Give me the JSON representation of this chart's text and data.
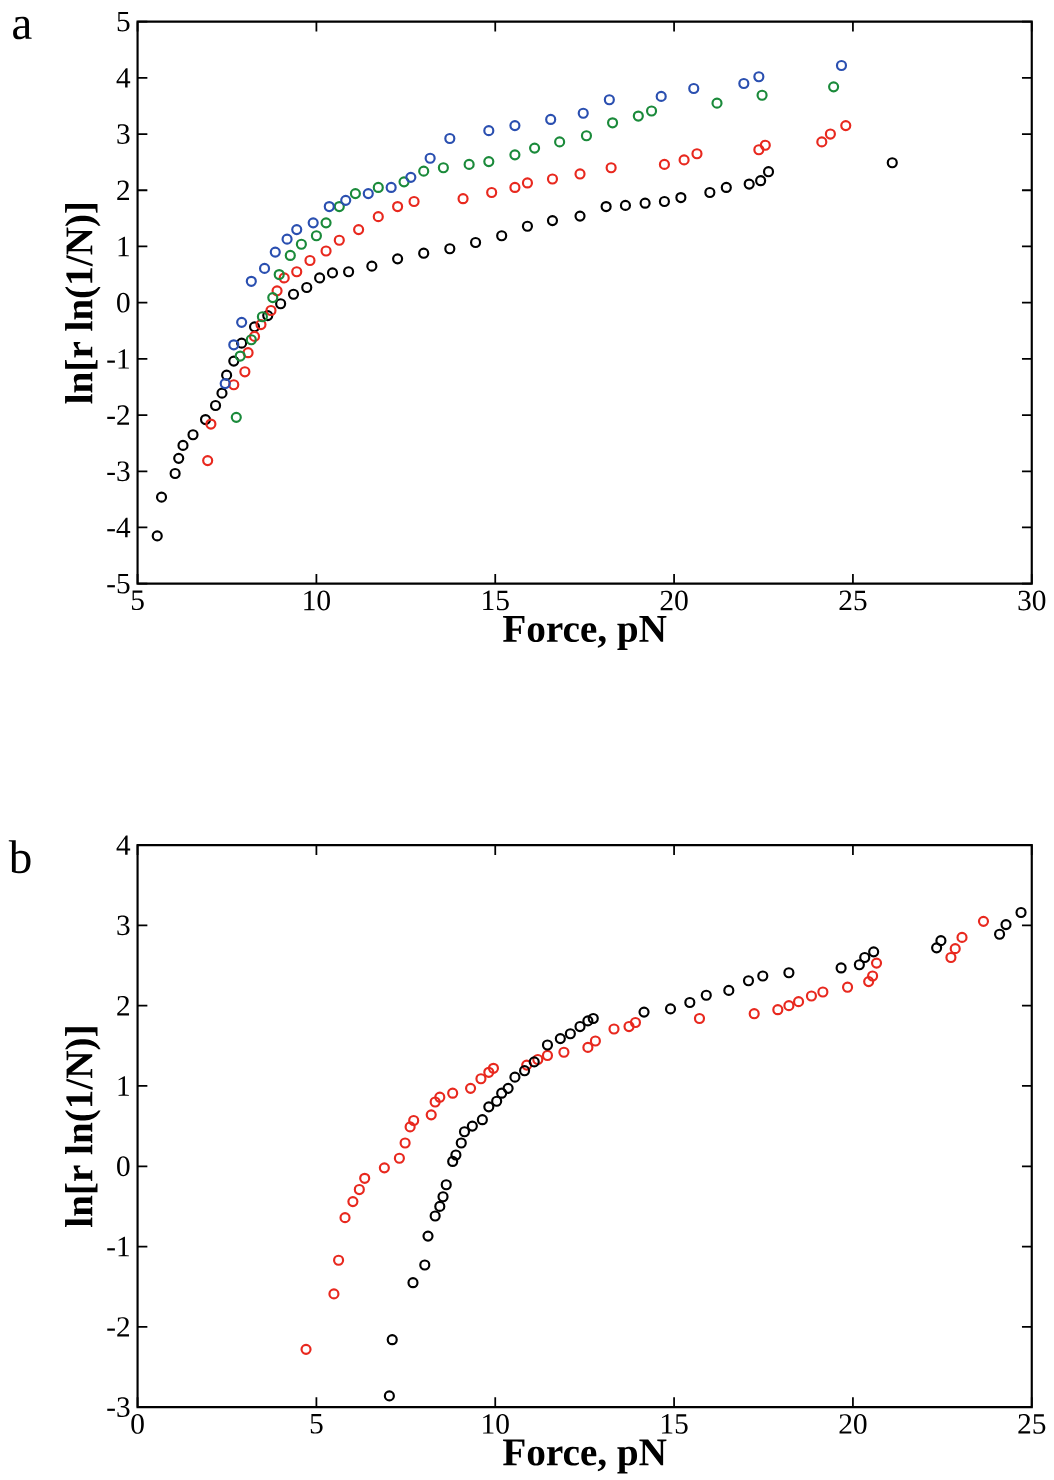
{
  "chart_data": [
    {
      "type": "scatter",
      "title": "a",
      "xlabel": "Force, pN",
      "ylabel": "ln[r ln(1/N)]",
      "xlim": [
        5,
        30
      ],
      "ylim": [
        -5,
        5
      ],
      "xticks": [
        5,
        10,
        15,
        20,
        25,
        30
      ],
      "yticks": [
        -5,
        -4,
        -3,
        -2,
        -1,
        0,
        1,
        2,
        3,
        4,
        5
      ],
      "grid": false,
      "marker": "circle",
      "series": [
        {
          "color": "#000000",
          "x": [
            5.55,
            5.67,
            6.05,
            6.15,
            6.27,
            6.55,
            6.9,
            7.18,
            7.36,
            7.49,
            7.69,
            7.91,
            8.27,
            8.64,
            9.0,
            9.36,
            9.73,
            10.09,
            10.45,
            10.9,
            11.55,
            12.27,
            13.0,
            13.73,
            14.45,
            15.18,
            15.9,
            16.6,
            17.37,
            18.1,
            18.64,
            19.19,
            19.73,
            20.19,
            21.0,
            21.46,
            22.1,
            22.42,
            22.64,
            26.1
          ],
          "values": [
            -4.15,
            -3.46,
            -3.04,
            -2.77,
            -2.54,
            -2.35,
            -2.08,
            -1.83,
            -1.61,
            -1.29,
            -1.04,
            -0.72,
            -0.43,
            -0.23,
            -0.02,
            0.15,
            0.27,
            0.44,
            0.53,
            0.55,
            0.65,
            0.78,
            0.88,
            0.96,
            1.07,
            1.19,
            1.36,
            1.46,
            1.54,
            1.71,
            1.73,
            1.77,
            1.8,
            1.87,
            1.96,
            2.05,
            2.11,
            2.17,
            2.33,
            2.49
          ]
        },
        {
          "color": "#e8281e",
          "x": [
            6.96,
            7.05,
            7.69,
            8.0,
            8.09,
            8.27,
            8.45,
            8.73,
            8.9,
            9.1,
            9.45,
            9.82,
            10.27,
            10.64,
            11.18,
            11.73,
            12.27,
            12.73,
            14.1,
            14.9,
            15.55,
            15.9,
            16.6,
            17.37,
            18.24,
            19.73,
            20.28,
            20.64,
            22.37,
            22.55,
            24.13,
            24.37,
            24.8
          ],
          "values": [
            -2.81,
            -2.16,
            -1.46,
            -1.23,
            -0.89,
            -0.6,
            -0.39,
            -0.14,
            0.21,
            0.44,
            0.55,
            0.75,
            0.92,
            1.11,
            1.3,
            1.53,
            1.71,
            1.8,
            1.85,
            1.96,
            2.05,
            2.13,
            2.2,
            2.29,
            2.4,
            2.46,
            2.54,
            2.65,
            2.72,
            2.8,
            2.86,
            3.0,
            3.15
          ]
        },
        {
          "color": "#1a8a3a",
          "x": [
            7.76,
            7.87,
            8.18,
            8.49,
            8.78,
            8.96,
            9.27,
            9.58,
            10.0,
            10.27,
            10.64,
            11.09,
            11.73,
            12.45,
            13.0,
            13.55,
            14.27,
            14.82,
            15.55,
            16.1,
            16.8,
            17.55,
            18.28,
            19.0,
            19.37,
            21.2,
            22.46,
            24.46
          ],
          "values": [
            -2.04,
            -0.95,
            -0.66,
            -0.25,
            0.09,
            0.5,
            0.84,
            1.04,
            1.19,
            1.42,
            1.71,
            1.94,
            2.05,
            2.15,
            2.34,
            2.4,
            2.46,
            2.51,
            2.63,
            2.75,
            2.86,
            2.97,
            3.2,
            3.32,
            3.41,
            3.55,
            3.69,
            3.84
          ]
        },
        {
          "color": "#2a4fb0",
          "x": [
            7.45,
            7.69,
            7.91,
            8.18,
            8.55,
            8.85,
            9.18,
            9.45,
            9.91,
            10.36,
            10.82,
            11.45,
            12.09,
            12.64,
            13.18,
            13.73,
            14.82,
            15.55,
            16.55,
            17.46,
            18.19,
            19.64,
            20.55,
            21.95,
            22.37,
            24.68
          ],
          "values": [
            -1.44,
            -0.75,
            -0.35,
            0.38,
            0.61,
            0.9,
            1.13,
            1.3,
            1.42,
            1.71,
            1.82,
            1.94,
            2.05,
            2.23,
            2.57,
            2.92,
            3.06,
            3.15,
            3.26,
            3.37,
            3.61,
            3.67,
            3.81,
            3.9,
            4.02,
            4.22
          ]
        }
      ]
    },
    {
      "type": "scatter",
      "title": "b",
      "xlabel": "Force, pN",
      "ylabel": "ln[r ln(1/N)]",
      "xlim": [
        0,
        25
      ],
      "ylim": [
        -3,
        4
      ],
      "xticks": [
        0,
        5,
        10,
        15,
        20,
        25
      ],
      "yticks": [
        -3,
        -2,
        -1,
        0,
        1,
        2,
        3,
        4
      ],
      "grid": false,
      "marker": "circle",
      "series": [
        {
          "color": "#e8281e",
          "x": [
            4.71,
            5.49,
            5.62,
            5.8,
            6.02,
            6.2,
            6.35,
            6.9,
            7.32,
            7.48,
            7.62,
            7.72,
            8.21,
            8.32,
            8.45,
            8.81,
            9.31,
            9.6,
            9.82,
            9.95,
            10.88,
            11.19,
            11.46,
            11.92,
            12.59,
            12.8,
            13.32,
            13.74,
            13.92,
            15.71,
            17.24,
            17.9,
            18.21,
            18.48,
            18.84,
            19.16,
            19.85,
            20.44,
            20.55,
            20.66,
            22.74,
            22.86,
            23.05,
            23.65
          ],
          "values": [
            -2.28,
            -1.59,
            -1.17,
            -0.64,
            -0.44,
            -0.29,
            -0.15,
            -0.02,
            0.1,
            0.29,
            0.49,
            0.57,
            0.64,
            0.8,
            0.86,
            0.91,
            0.97,
            1.09,
            1.17,
            1.22,
            1.26,
            1.33,
            1.38,
            1.42,
            1.48,
            1.56,
            1.71,
            1.74,
            1.79,
            1.84,
            1.9,
            1.95,
            2.0,
            2.05,
            2.12,
            2.17,
            2.23,
            2.3,
            2.37,
            2.53,
            2.6,
            2.71,
            2.85,
            3.05
          ]
        },
        {
          "color": "#000000",
          "x": [
            7.04,
            7.12,
            7.7,
            8.03,
            8.12,
            8.32,
            8.45,
            8.54,
            8.63,
            8.81,
            8.9,
            9.05,
            9.14,
            9.36,
            9.64,
            9.82,
            10.04,
            10.18,
            10.36,
            10.55,
            10.82,
            11.09,
            11.46,
            11.82,
            12.1,
            12.37,
            12.59,
            12.74,
            14.16,
            14.9,
            15.44,
            15.9,
            16.53,
            17.08,
            17.48,
            18.21,
            19.67,
            20.18,
            20.33,
            20.58,
            22.34,
            22.46,
            24.1,
            24.28,
            24.7
          ],
          "values": [
            -2.86,
            -2.16,
            -1.45,
            -1.23,
            -0.87,
            -0.62,
            -0.5,
            -0.38,
            -0.23,
            0.06,
            0.14,
            0.29,
            0.43,
            0.5,
            0.58,
            0.74,
            0.81,
            0.91,
            0.97,
            1.11,
            1.19,
            1.3,
            1.51,
            1.59,
            1.65,
            1.74,
            1.81,
            1.84,
            1.92,
            1.96,
            2.04,
            2.13,
            2.19,
            2.31,
            2.37,
            2.41,
            2.47,
            2.51,
            2.6,
            2.67,
            2.72,
            2.81,
            2.89,
            3.01,
            3.16
          ]
        }
      ]
    }
  ]
}
